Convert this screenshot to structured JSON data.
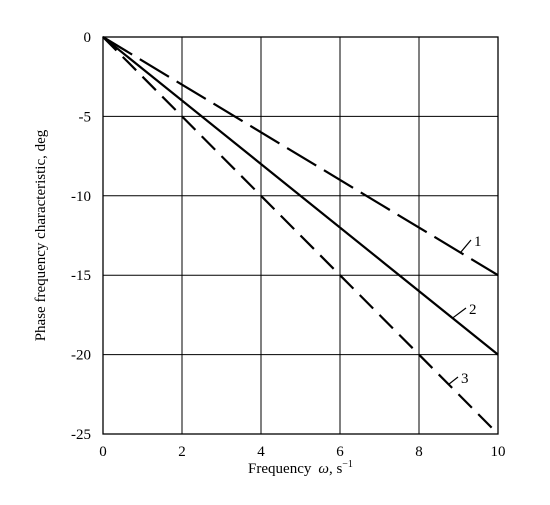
{
  "chart_data": {
    "type": "line",
    "title": "",
    "xlabel_prefix": "Frequency",
    "xlabel_symbol": "ω",
    "xlabel_unit": ", s",
    "xlabel_exp": "−1",
    "ylabel": "Phase frequency characteristic, deg",
    "xlim": [
      0,
      10
    ],
    "ylim": [
      -25,
      0
    ],
    "x_ticks": [
      "0",
      "2",
      "4",
      "6",
      "8",
      "10"
    ],
    "y_ticks": [
      "0",
      "-5",
      "-10",
      "-15",
      "-20",
      "-25"
    ],
    "grid": true,
    "series": [
      {
        "name": "1",
        "style": "long-dash",
        "x": [
          0,
          10
        ],
        "y": [
          0,
          -15
        ]
      },
      {
        "name": "2",
        "style": "solid",
        "x": [
          0,
          10
        ],
        "y": [
          0,
          -20
        ]
      },
      {
        "name": "3",
        "style": "dash",
        "x": [
          0,
          10
        ],
        "y": [
          0,
          -25
        ]
      }
    ]
  }
}
